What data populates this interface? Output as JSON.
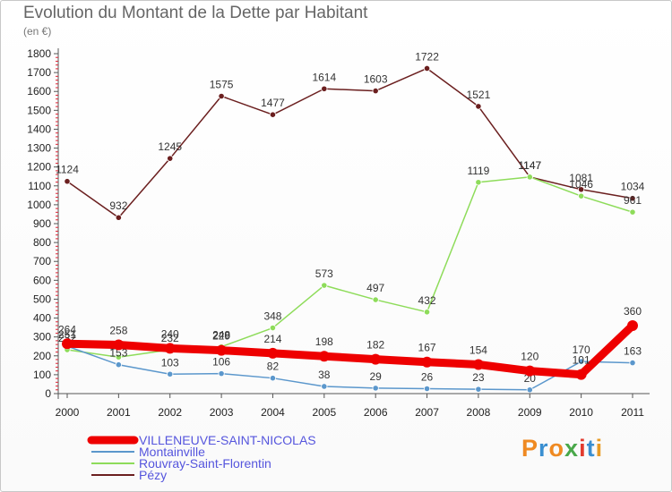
{
  "title": "Evolution du Montant de la Dette par Habitant",
  "unit": "(en €)",
  "logo": {
    "text": "Proxiti",
    "letter_colors": [
      "#ef8a22",
      "#3a8fd1",
      "#ef8a22",
      "#49a84a",
      "#e23b2e",
      "#3a8fd1",
      "#e89b25"
    ]
  },
  "chart_data": {
    "type": "line",
    "x": [
      "2000",
      "2001",
      "2002",
      "2003",
      "2004",
      "2005",
      "2006",
      "2007",
      "2008",
      "2009",
      "2010",
      "2011"
    ],
    "ylim": [
      0,
      1800
    ],
    "yticks": [
      0,
      100,
      200,
      300,
      400,
      500,
      600,
      700,
      800,
      900,
      1000,
      1100,
      1200,
      1300,
      1400,
      1500,
      1600,
      1700,
      1800
    ],
    "grid": false,
    "legend": "bottom-left",
    "series": [
      {
        "name": "VILLENEUVE-SAINT-NICOLAS",
        "color": "#ee0000",
        "values": [
          264,
          258,
          240,
          229,
          214,
          198,
          182,
          167,
          154,
          120,
          101,
          360
        ]
      },
      {
        "name": "Montainville",
        "color": "#5b97cc",
        "values": [
          251,
          153,
          103,
          106,
          82,
          38,
          29,
          26,
          23,
          20,
          170,
          163
        ]
      },
      {
        "name": "Rouvray-Saint-Florentin",
        "color": "#8edc5a",
        "values": [
          232,
          193,
          232,
          248,
          348,
          573,
          497,
          432,
          1119,
          1147,
          1046,
          961
        ]
      },
      {
        "name": "Pézy",
        "color": "#6b1f1f",
        "values": [
          1124,
          932,
          1245,
          1575,
          1477,
          1614,
          1603,
          1722,
          1521,
          1147,
          1081,
          1034
        ]
      }
    ]
  }
}
